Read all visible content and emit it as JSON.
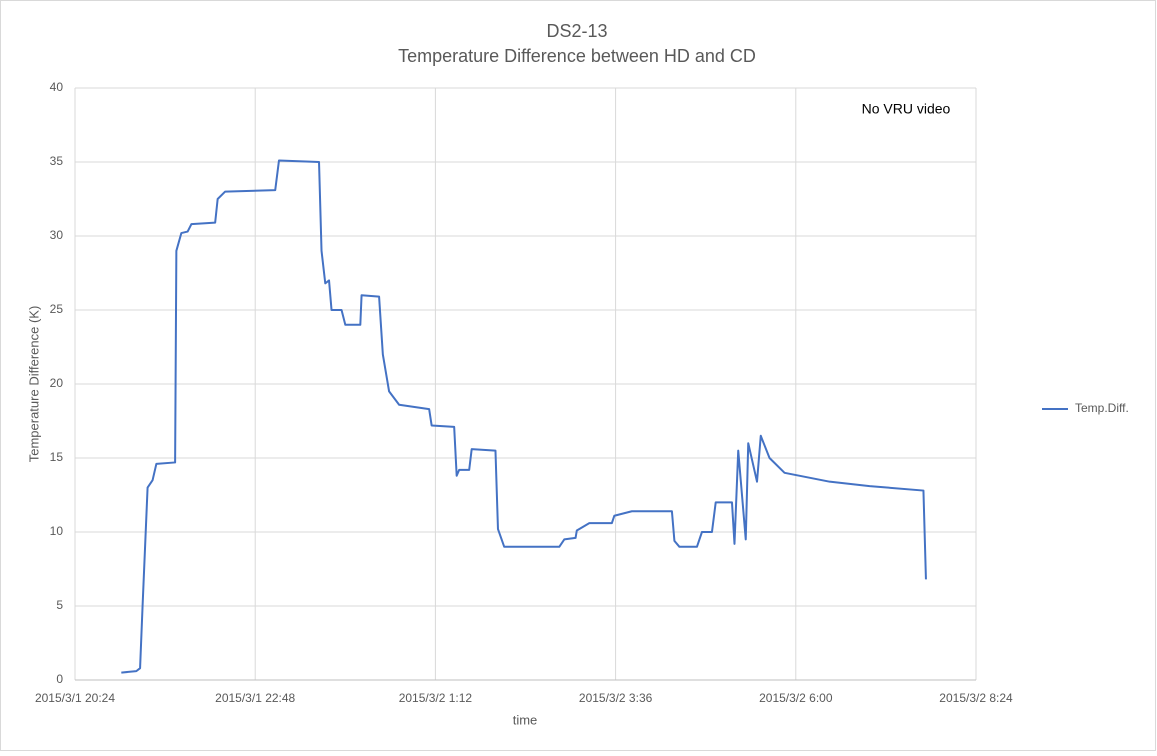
{
  "chart_data": {
    "type": "line",
    "title": [
      "DS2-13",
      "Temperature Difference between HD and CD"
    ],
    "annotation": "No VRU video",
    "xlabel": "time",
    "ylabel": "Temperature Difference (K)",
    "x": [
      "2015/3/1 21:01",
      "2015/3/1 21:13",
      "2015/3/1 21:16",
      "2015/3/1 21:18",
      "2015/3/1 21:22",
      "2015/3/1 21:26",
      "2015/3/1 21:29",
      "2015/3/1 21:44",
      "2015/3/1 21:45",
      "2015/3/1 21:49",
      "2015/3/1 21:54",
      "2015/3/1 21:57",
      "2015/3/1 22:16",
      "2015/3/1 22:18",
      "2015/3/1 22:24",
      "2015/3/1 23:04",
      "2015/3/1 23:07",
      "2015/3/1 23:39",
      "2015/3/1 23:41",
      "2015/3/1 23:44",
      "2015/3/1 23:47",
      "2015/3/1 23:49",
      "2015/3/1 23:57",
      "2015/3/2 0:00",
      "2015/3/2 0:12",
      "2015/3/2 0:13",
      "2015/3/2 0:27",
      "2015/3/2 0:30",
      "2015/3/2 0:35",
      "2015/3/2 0:43",
      "2015/3/2 1:07",
      "2015/3/2 1:09",
      "2015/3/2 1:27",
      "2015/3/2 1:29",
      "2015/3/2 1:31",
      "2015/3/2 1:39",
      "2015/3/2 1:41",
      "2015/3/2 2:00",
      "2015/3/2 2:02",
      "2015/3/2 2:07",
      "2015/3/2 2:51",
      "2015/3/2 2:55",
      "2015/3/2 3:04",
      "2015/3/2 3:05",
      "2015/3/2 3:15",
      "2015/3/2 3:33",
      "2015/3/2 3:35",
      "2015/3/2 3:49",
      "2015/3/2 4:21",
      "2015/3/2 4:23",
      "2015/3/2 4:27",
      "2015/3/2 4:41",
      "2015/3/2 4:45",
      "2015/3/2 4:53",
      "2015/3/2 4:56",
      "2015/3/2 5:09",
      "2015/3/2 5:11",
      "2015/3/2 5:14",
      "2015/3/2 5:20",
      "2015/3/2 5:22",
      "2015/3/2 5:29",
      "2015/3/2 5:32",
      "2015/3/2 5:39",
      "2015/3/2 5:51",
      "2015/3/2 6:27",
      "2015/3/2 6:59",
      "2015/3/2 7:42",
      "2015/3/2 7:44"
    ],
    "series": [
      {
        "name": "Temp.Diff.",
        "color": "#4472c4",
        "values": [
          0.5,
          0.6,
          0.8,
          5,
          13,
          13.5,
          14.6,
          14.7,
          29,
          30.2,
          30.3,
          30.8,
          30.9,
          32.5,
          33,
          33.1,
          35.1,
          35,
          29,
          26.8,
          27,
          25,
          25,
          24,
          24,
          26,
          25.9,
          22,
          19.5,
          18.6,
          18.3,
          17.2,
          17.1,
          13.8,
          14.2,
          14.2,
          15.6,
          15.5,
          10.2,
          9,
          9,
          9.5,
          9.6,
          10.1,
          10.6,
          10.6,
          11.1,
          11.4,
          11.4,
          9.4,
          9,
          9,
          10,
          10,
          12,
          12,
          9.2,
          15.5,
          9.5,
          16,
          13.4,
          16.5,
          15,
          14,
          13.4,
          13.1,
          12.8,
          6.8
        ]
      }
    ],
    "xlim": [
      "2015/3/1 20:24",
      "2015/3/2 8:24"
    ],
    "xticks": [
      "2015/3/1 20:24",
      "2015/3/1 22:48",
      "2015/3/2 1:12",
      "2015/3/2 3:36",
      "2015/3/2 6:00",
      "2015/3/2 8:24"
    ],
    "ylim": [
      0,
      40
    ],
    "yticks": [
      0,
      5,
      10,
      15,
      20,
      25,
      30,
      35,
      40
    ],
    "grid": true,
    "legend": "right"
  }
}
